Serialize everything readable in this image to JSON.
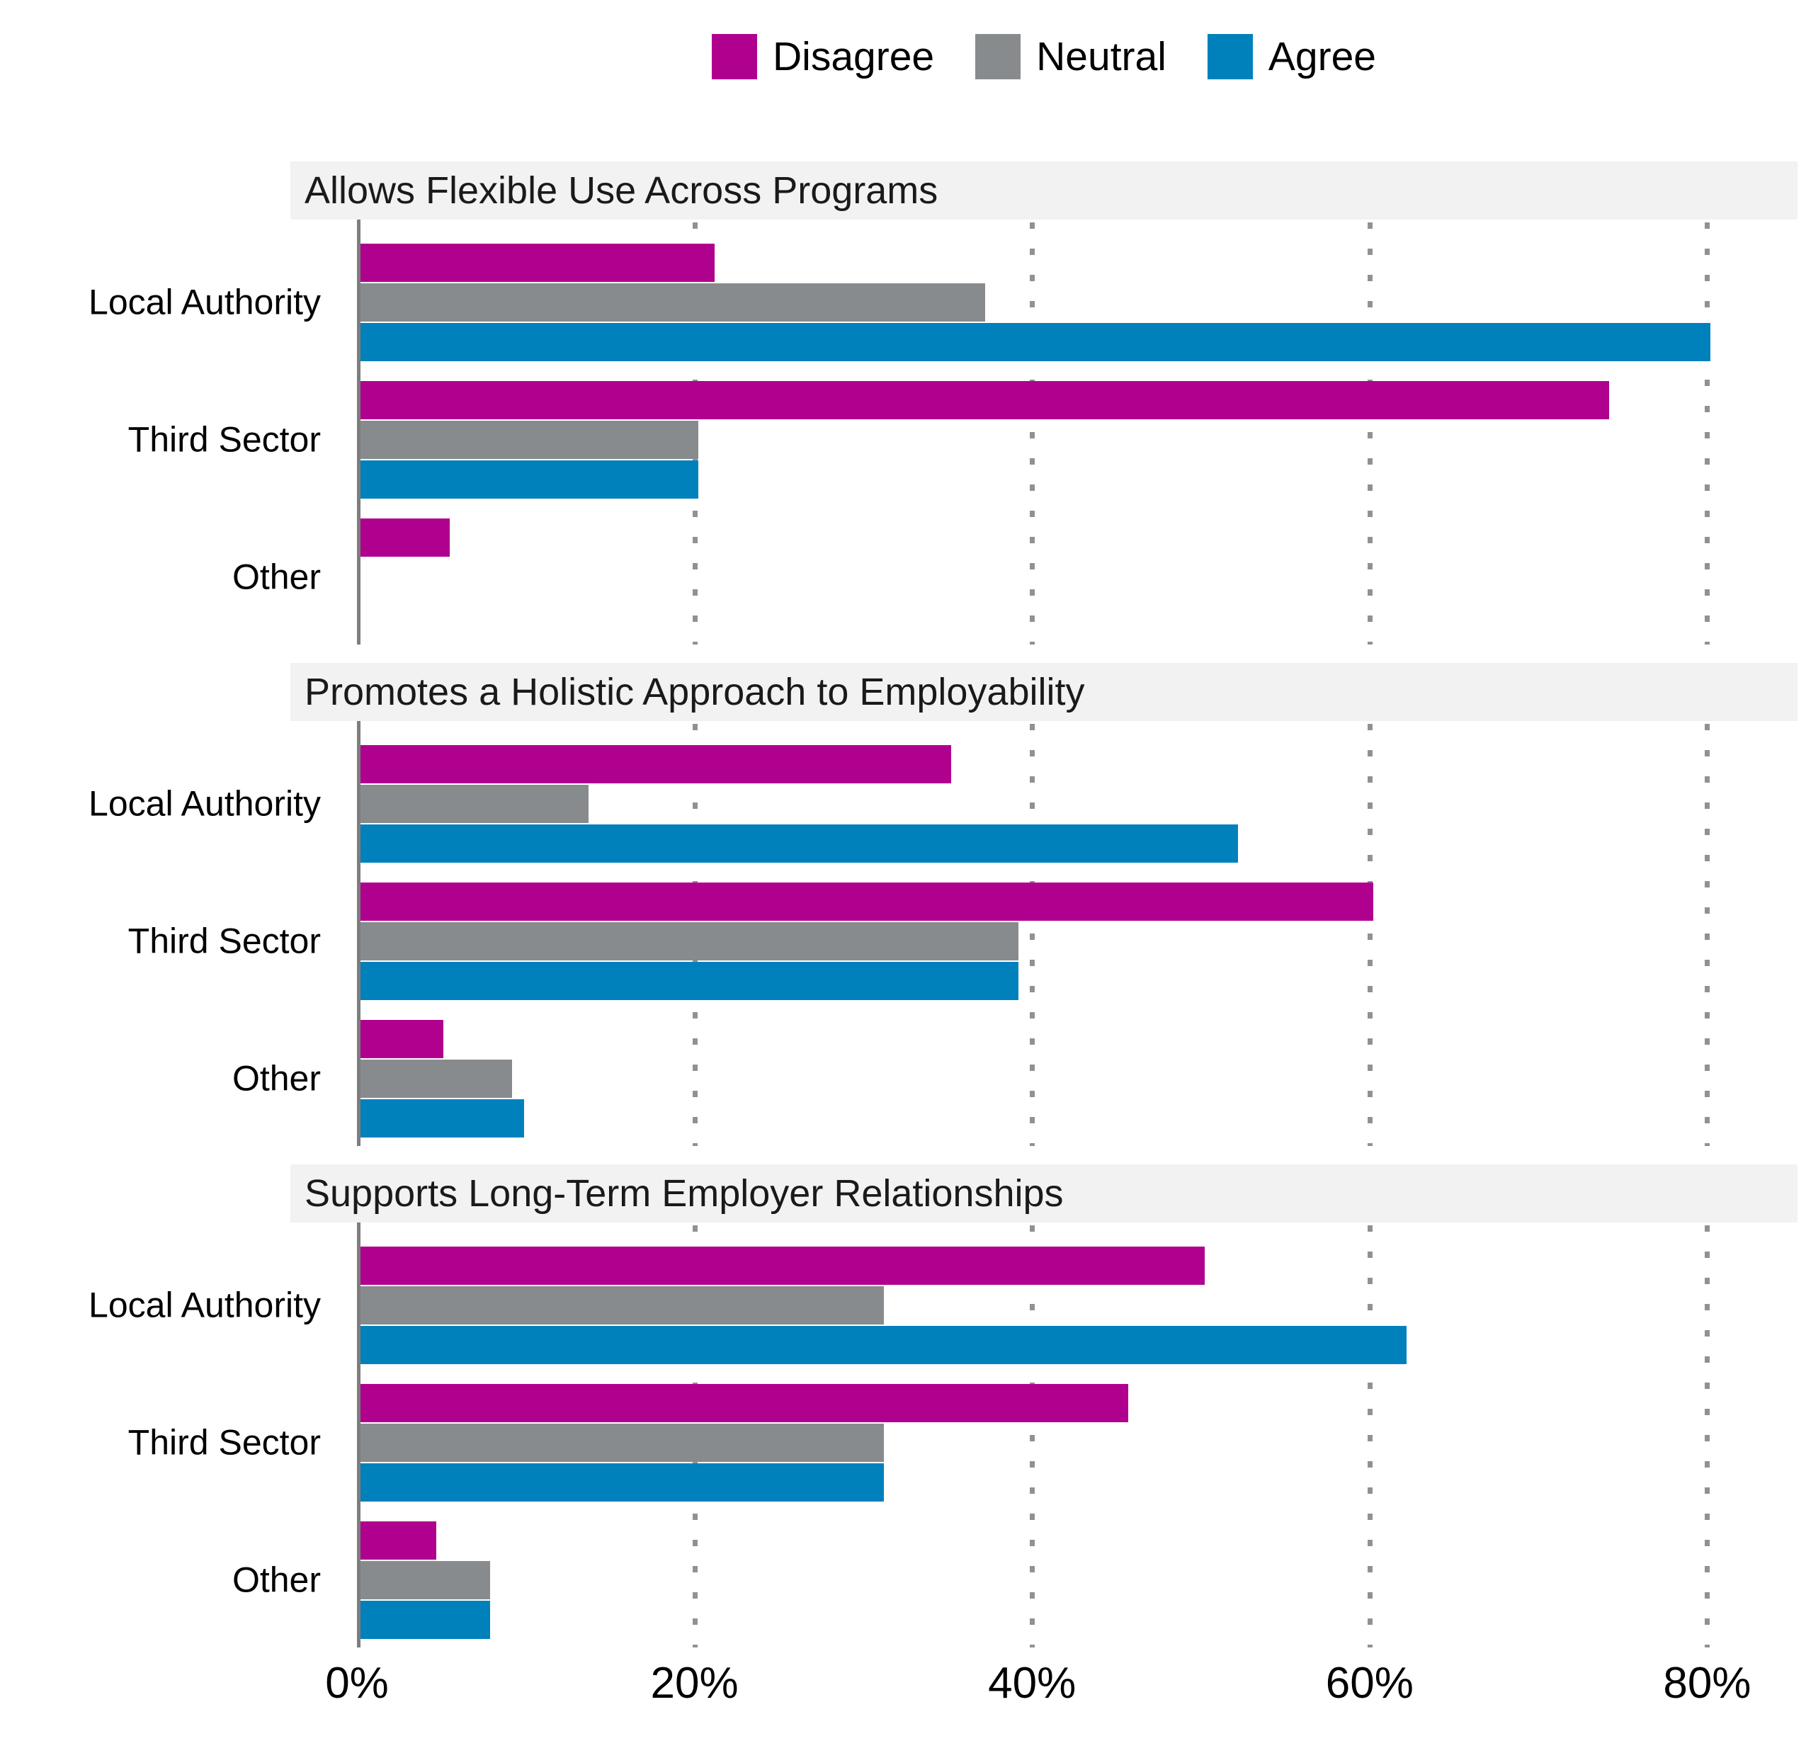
{
  "legend": {
    "items": [
      {
        "label": "Disagree",
        "color": "#b0008e"
      },
      {
        "label": "Neutral",
        "color": "#888b8d"
      },
      {
        "label": "Agree",
        "color": "#0081bc"
      }
    ]
  },
  "colors": {
    "disagree": "#b0008e",
    "neutral": "#888b8d",
    "agree": "#0081bc",
    "strip_background": "#f2f2f2",
    "strip_text": "#1a1a1a",
    "axis_line": "#7d7d7d",
    "gridline": "#8f9294"
  },
  "chart_data": {
    "type": "bar",
    "orientation": "horizontal",
    "categories": [
      "Local Authority",
      "Third Sector",
      "Other"
    ],
    "series_names": [
      "Disagree",
      "Neutral",
      "Agree"
    ],
    "panels": [
      {
        "title": "Allows Flexible Use Across Programs",
        "series": [
          {
            "name": "Disagree",
            "values": [
              21,
              74,
              5.3
            ]
          },
          {
            "name": "Neutral",
            "values": [
              37,
              20,
              0
            ]
          },
          {
            "name": "Agree",
            "values": [
              80,
              20,
              0
            ]
          }
        ]
      },
      {
        "title": "Promotes a Holistic Approach to Employability",
        "series": [
          {
            "name": "Disagree",
            "values": [
              35,
              60,
              4.9
            ]
          },
          {
            "name": "Neutral",
            "values": [
              13.5,
              39,
              9
            ]
          },
          {
            "name": "Agree",
            "values": [
              52,
              39,
              9.7
            ]
          }
        ]
      },
      {
        "title": "Supports Long-Term Employer Relationships",
        "series": [
          {
            "name": "Disagree",
            "values": [
              50,
              45.5,
              4.5
            ]
          },
          {
            "name": "Neutral",
            "values": [
              31,
              31,
              7.7
            ]
          },
          {
            "name": "Agree",
            "values": [
              62,
              31,
              7.7
            ]
          }
        ]
      }
    ],
    "x_ticks": [
      "0%",
      "20%",
      "40%",
      "60%",
      "80%"
    ],
    "x_tick_values": [
      0,
      20,
      40,
      60,
      80
    ],
    "xlim": [
      0,
      85
    ],
    "grid": "vertical-dotted",
    "legend_position": "top",
    "unit": "percent"
  }
}
